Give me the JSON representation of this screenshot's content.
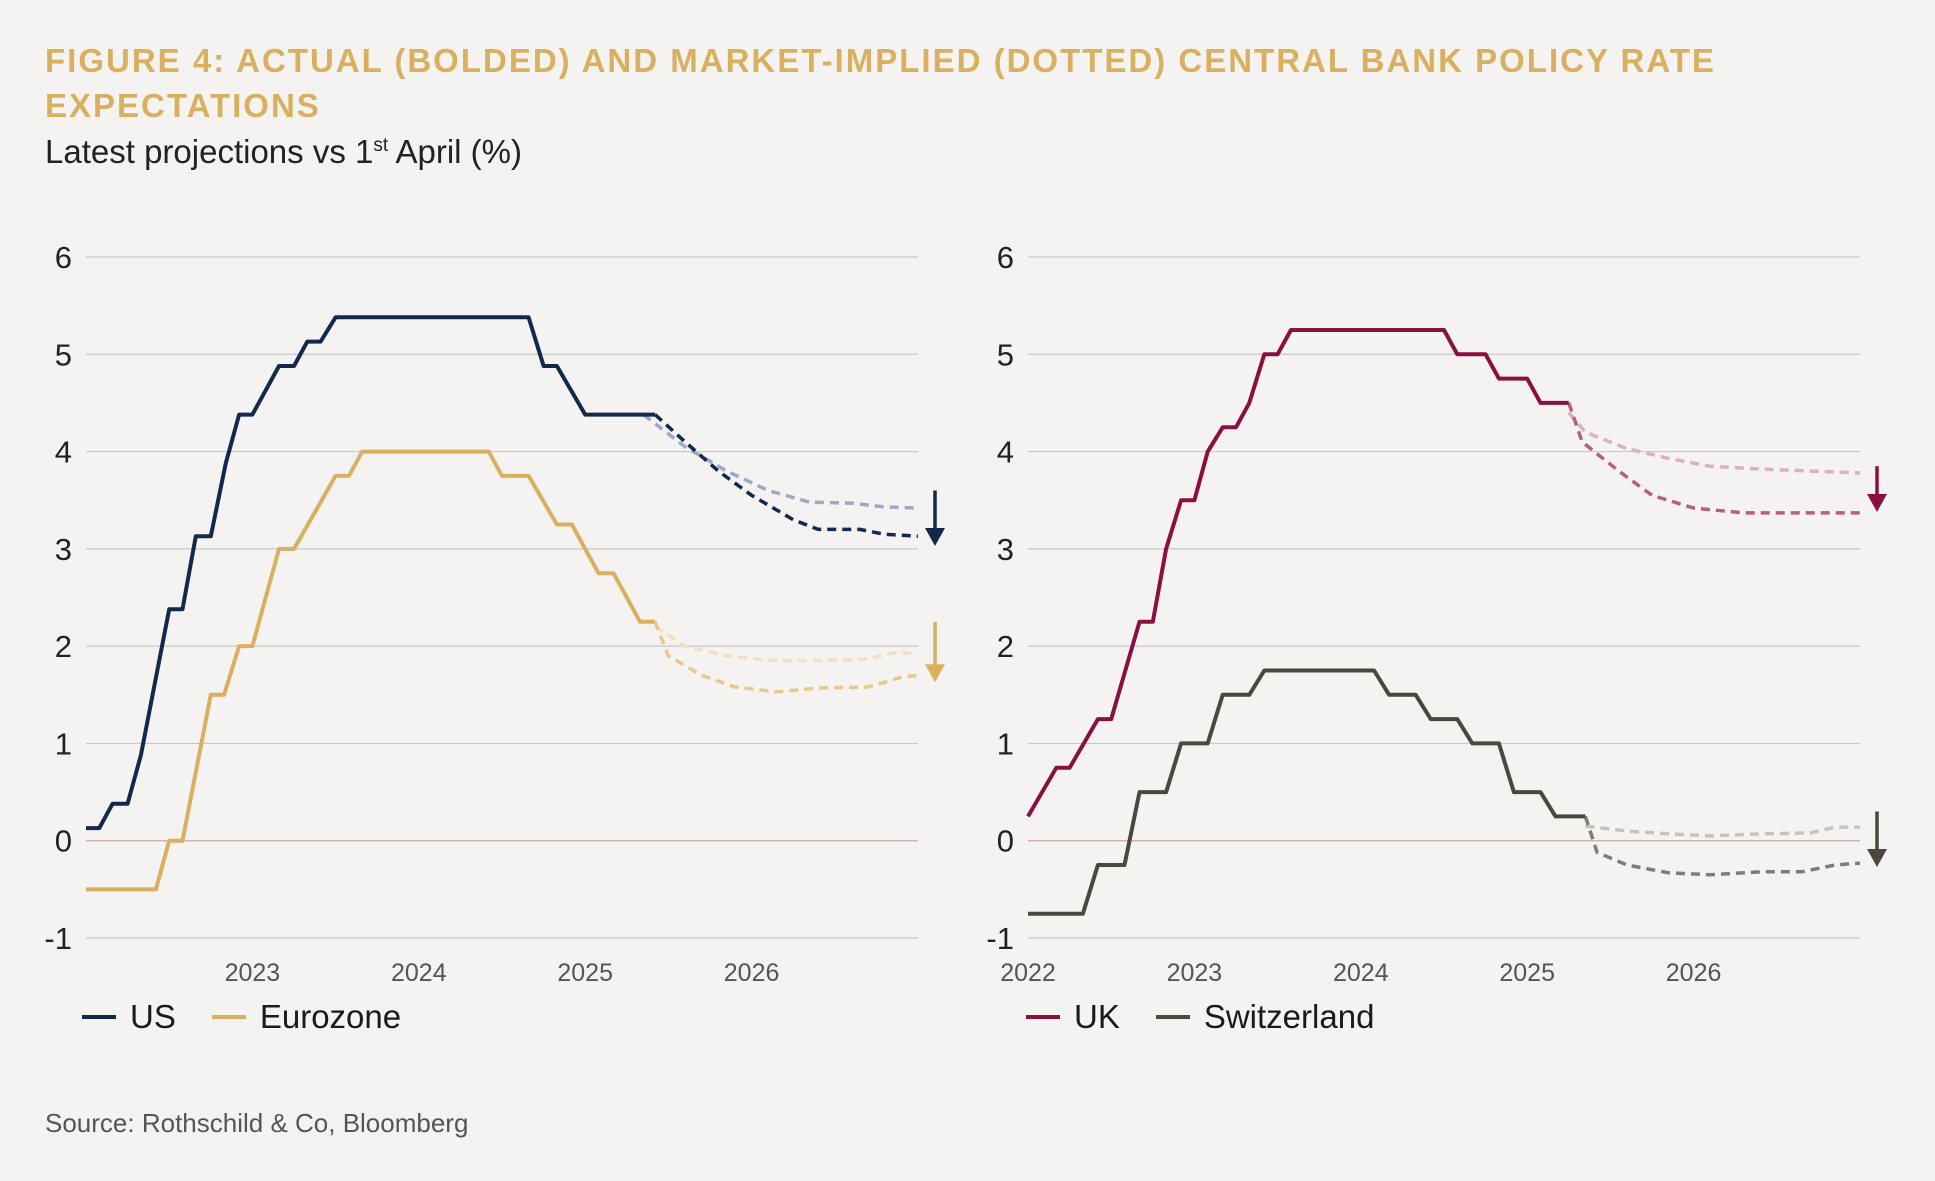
{
  "title_line1": "FIGURE 4: ACTUAL (BOLDED) AND MARKET-IMPLIED (DOTTED) CENTRAL BANK POLICY RATE",
  "title_line2": "EXPECTATIONS",
  "subtitle": {
    "prefix": "Latest projections vs 1",
    "sup": "st",
    "suffix": " April (%)"
  },
  "source": "Source: Rothschild & Co, Bloomberg",
  "colors": {
    "us": "#13294b",
    "eurozone": "#d9b05f",
    "uk": "#8b1041",
    "switzerland": "#4a4640",
    "grid": "#c8c8c8",
    "zero": "#c9a9a9"
  },
  "chart_data": [
    {
      "type": "line",
      "ylim": [
        -1,
        6
      ],
      "yticks": [
        "6",
        "5",
        "4",
        "3",
        "2",
        "1",
        "0",
        "-1"
      ],
      "xlim": [
        2022.0,
        2027.0
      ],
      "xticks": [
        {
          "value": 2023,
          "label": "2023"
        },
        {
          "value": 2024,
          "label": "2024"
        },
        {
          "value": 2025,
          "label": "2025"
        },
        {
          "value": 2026,
          "label": "2026"
        }
      ],
      "legend_position": "bottom-left",
      "series": [
        {
          "name": "US",
          "color": "#13294b",
          "style": "solid",
          "points": [
            [
              2022.0,
              0.13
            ],
            [
              2022.08,
              0.13
            ],
            [
              2022.16,
              0.38
            ],
            [
              2022.25,
              0.38
            ],
            [
              2022.33,
              0.88
            ],
            [
              2022.5,
              2.38
            ],
            [
              2022.58,
              2.38
            ],
            [
              2022.66,
              3.13
            ],
            [
              2022.75,
              3.13
            ],
            [
              2022.84,
              3.88
            ],
            [
              2022.92,
              4.38
            ],
            [
              2023.0,
              4.38
            ],
            [
              2023.08,
              4.63
            ],
            [
              2023.16,
              4.88
            ],
            [
              2023.25,
              4.88
            ],
            [
              2023.33,
              5.13
            ],
            [
              2023.41,
              5.13
            ],
            [
              2023.5,
              5.38
            ],
            [
              2024.66,
              5.38
            ],
            [
              2024.75,
              4.88
            ],
            [
              2024.83,
              4.88
            ],
            [
              2025.0,
              4.38
            ],
            [
              2025.42,
              4.38
            ]
          ]
        },
        {
          "name": "US latest",
          "color": "#13294b",
          "style": "dashed",
          "points": [
            [
              2025.42,
              4.38
            ],
            [
              2025.6,
              4.1
            ],
            [
              2025.8,
              3.8
            ],
            [
              2026.0,
              3.55
            ],
            [
              2026.25,
              3.3
            ],
            [
              2026.4,
              3.2
            ],
            [
              2026.65,
              3.2
            ],
            [
              2026.8,
              3.15
            ],
            [
              2027.0,
              3.13
            ]
          ]
        },
        {
          "name": "US 1st April",
          "color": "#a2a6c6",
          "style": "dashed",
          "points": [
            [
              2025.35,
              4.38
            ],
            [
              2025.6,
              4.05
            ],
            [
              2025.85,
              3.8
            ],
            [
              2026.1,
              3.6
            ],
            [
              2026.35,
              3.48
            ],
            [
              2026.6,
              3.47
            ],
            [
              2026.8,
              3.43
            ],
            [
              2027.0,
              3.42
            ]
          ]
        },
        {
          "name": "Eurozone",
          "color": "#d9b05f",
          "style": "solid",
          "points": [
            [
              2022.0,
              -0.5
            ],
            [
              2022.42,
              -0.5
            ],
            [
              2022.5,
              0.0
            ],
            [
              2022.58,
              0.0
            ],
            [
              2022.75,
              1.5
            ],
            [
              2022.83,
              1.5
            ],
            [
              2022.92,
              2.0
            ],
            [
              2023.0,
              2.0
            ],
            [
              2023.16,
              3.0
            ],
            [
              2023.25,
              3.0
            ],
            [
              2023.5,
              3.75
            ],
            [
              2023.58,
              3.75
            ],
            [
              2023.66,
              4.0
            ],
            [
              2024.42,
              4.0
            ],
            [
              2024.5,
              3.75
            ],
            [
              2024.66,
              3.75
            ],
            [
              2024.83,
              3.25
            ],
            [
              2024.92,
              3.25
            ],
            [
              2025.08,
              2.75
            ],
            [
              2025.17,
              2.75
            ],
            [
              2025.33,
              2.25
            ],
            [
              2025.42,
              2.25
            ]
          ]
        },
        {
          "name": "Eurozone latest",
          "color": "#e8c98b",
          "style": "dashed",
          "points": [
            [
              2025.42,
              2.25
            ],
            [
              2025.5,
              1.9
            ],
            [
              2025.7,
              1.7
            ],
            [
              2025.9,
              1.58
            ],
            [
              2026.15,
              1.53
            ],
            [
              2026.4,
              1.57
            ],
            [
              2026.7,
              1.58
            ],
            [
              2026.9,
              1.68
            ],
            [
              2027.0,
              1.7
            ]
          ]
        },
        {
          "name": "Eurozone 1st April",
          "color": "#f1e1c1",
          "style": "dashed",
          "points": [
            [
              2025.42,
              2.2
            ],
            [
              2025.6,
              2.0
            ],
            [
              2025.85,
              1.9
            ],
            [
              2026.15,
              1.85
            ],
            [
              2026.4,
              1.85
            ],
            [
              2026.7,
              1.87
            ],
            [
              2026.85,
              1.93
            ],
            [
              2027.0,
              1.93
            ]
          ]
        }
      ]
    },
    {
      "type": "line",
      "ylim": [
        -1,
        6
      ],
      "yticks": [
        "6",
        "5",
        "4",
        "3",
        "2",
        "1",
        "0",
        "-1"
      ],
      "xlim": [
        2022.0,
        2027.0
      ],
      "xticks": [
        {
          "value": 2022,
          "label": "2022"
        },
        {
          "value": 2023,
          "label": "2023"
        },
        {
          "value": 2024,
          "label": "2024"
        },
        {
          "value": 2025,
          "label": "2025"
        },
        {
          "value": 2026,
          "label": "2026"
        }
      ],
      "legend_position": "bottom-left",
      "series": [
        {
          "name": "UK",
          "color": "#8b1041",
          "style": "solid",
          "points": [
            [
              2022.0,
              0.25
            ],
            [
              2022.17,
              0.75
            ],
            [
              2022.25,
              0.75
            ],
            [
              2022.42,
              1.25
            ],
            [
              2022.5,
              1.25
            ],
            [
              2022.67,
              2.25
            ],
            [
              2022.75,
              2.25
            ],
            [
              2022.83,
              3.0
            ],
            [
              2022.92,
              3.5
            ],
            [
              2023.0,
              3.5
            ],
            [
              2023.08,
              4.0
            ],
            [
              2023.17,
              4.25
            ],
            [
              2023.25,
              4.25
            ],
            [
              2023.33,
              4.5
            ],
            [
              2023.42,
              5.0
            ],
            [
              2023.5,
              5.0
            ],
            [
              2023.58,
              5.25
            ],
            [
              2024.5,
              5.25
            ],
            [
              2024.58,
              5.0
            ],
            [
              2024.75,
              5.0
            ],
            [
              2024.83,
              4.75
            ],
            [
              2025.0,
              4.75
            ],
            [
              2025.08,
              4.5
            ],
            [
              2025.25,
              4.5
            ]
          ]
        },
        {
          "name": "UK latest",
          "color": "#b4607f",
          "style": "dashed",
          "points": [
            [
              2025.25,
              4.5
            ],
            [
              2025.33,
              4.1
            ],
            [
              2025.55,
              3.8
            ],
            [
              2025.75,
              3.55
            ],
            [
              2026.0,
              3.42
            ],
            [
              2026.3,
              3.37
            ],
            [
              2026.6,
              3.37
            ],
            [
              2027.0,
              3.37
            ]
          ]
        },
        {
          "name": "UK 1st April",
          "color": "#dcb0be",
          "style": "dashed",
          "points": [
            [
              2025.25,
              4.4
            ],
            [
              2025.35,
              4.2
            ],
            [
              2025.6,
              4.03
            ],
            [
              2025.85,
              3.93
            ],
            [
              2026.1,
              3.85
            ],
            [
              2026.4,
              3.82
            ],
            [
              2026.7,
              3.8
            ],
            [
              2027.0,
              3.78
            ]
          ]
        },
        {
          "name": "Switzerland",
          "color": "#4a4640",
          "style": "solid",
          "points": [
            [
              2022.0,
              -0.75
            ],
            [
              2022.33,
              -0.75
            ],
            [
              2022.42,
              -0.25
            ],
            [
              2022.58,
              -0.25
            ],
            [
              2022.67,
              0.5
            ],
            [
              2022.83,
              0.5
            ],
            [
              2022.92,
              1.0
            ],
            [
              2023.08,
              1.0
            ],
            [
              2023.17,
              1.5
            ],
            [
              2023.33,
              1.5
            ],
            [
              2023.42,
              1.75
            ],
            [
              2024.08,
              1.75
            ],
            [
              2024.17,
              1.5
            ],
            [
              2024.33,
              1.5
            ],
            [
              2024.42,
              1.25
            ],
            [
              2024.58,
              1.25
            ],
            [
              2024.67,
              1.0
            ],
            [
              2024.83,
              1.0
            ],
            [
              2024.92,
              0.5
            ],
            [
              2025.08,
              0.5
            ],
            [
              2025.17,
              0.25
            ],
            [
              2025.35,
              0.25
            ]
          ]
        },
        {
          "name": "Switzerland latest",
          "color": "#7f7c77",
          "style": "dashed",
          "points": [
            [
              2025.35,
              0.25
            ],
            [
              2025.42,
              -0.12
            ],
            [
              2025.6,
              -0.25
            ],
            [
              2025.85,
              -0.33
            ],
            [
              2026.1,
              -0.35
            ],
            [
              2026.4,
              -0.32
            ],
            [
              2026.65,
              -0.32
            ],
            [
              2026.85,
              -0.25
            ],
            [
              2027.0,
              -0.23
            ]
          ]
        },
        {
          "name": "Switzerland 1st April",
          "color": "#c6c3be",
          "style": "dashed",
          "points": [
            [
              2025.35,
              0.15
            ],
            [
              2025.6,
              0.1
            ],
            [
              2025.85,
              0.07
            ],
            [
              2026.1,
              0.05
            ],
            [
              2026.4,
              0.07
            ],
            [
              2026.7,
              0.08
            ],
            [
              2026.85,
              0.14
            ],
            [
              2027.0,
              0.14
            ]
          ]
        }
      ]
    }
  ],
  "legends": [
    {
      "items": [
        {
          "label": "US",
          "color": "#13294b"
        },
        {
          "label": "Eurozone",
          "color": "#d9b05f"
        }
      ]
    },
    {
      "items": [
        {
          "label": "UK",
          "color": "#8b1041"
        },
        {
          "label": "Switzerland",
          "color": "#4a4640"
        }
      ]
    }
  ],
  "arrows": [
    [
      {
        "color": "#13294b",
        "from": 3.6,
        "to": 3.05
      },
      {
        "color": "#d9b05f",
        "from": 2.25,
        "to": 1.65
      }
    ],
    [
      {
        "color": "#8b1041",
        "from": 3.85,
        "to": 3.4
      },
      {
        "color": "#4a4640",
        "from": 0.3,
        "to": -0.25
      }
    ]
  ]
}
